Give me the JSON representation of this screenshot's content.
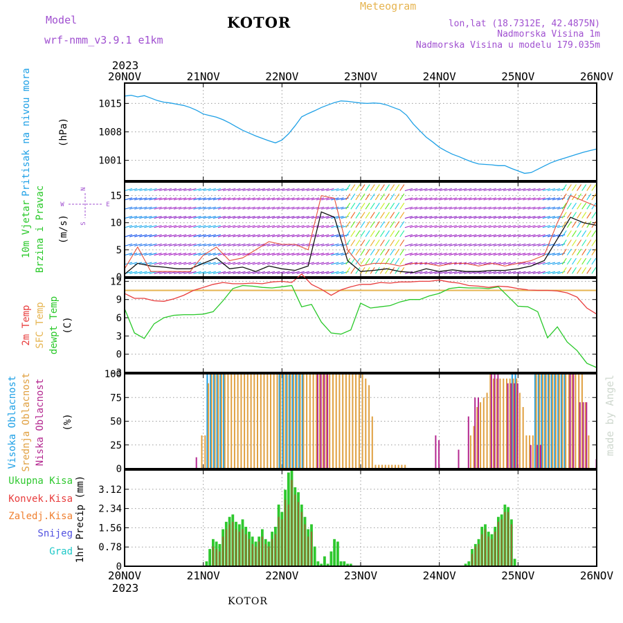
{
  "header": {
    "model_label": "Model",
    "model_name": "wrf-nmm_v3.9.1  e1km",
    "title": "KOTOR",
    "meteogram": "Meteogram",
    "lonlat": "lon,lat (18.7312E, 42.4875N)",
    "elevation": "Nadmorska Visina 1m",
    "model_elevation": "Nadmorska Visina u modelu 179.035m",
    "credit": "made by Angel",
    "footer_title": "KOTOR"
  },
  "colors": {
    "pressure": "#1ea0e6",
    "temp2m": "#e83c3c",
    "sfc_temp": "#e6b450",
    "dewpoint": "#28c828",
    "wind_speed": "#111111",
    "wind_gust": "#e6503c",
    "high_cloud": "#1ea0e6",
    "mid_cloud": "#e0a040",
    "low_cloud": "#b42890",
    "total_precip": "#2ec82e",
    "conv_precip": "#e83c3c",
    "frozen_precip": "#f08030",
    "snow": "#5050e0",
    "hail": "#20c8c8",
    "header_purple": "#a050d0",
    "header_gold": "#e6b450"
  },
  "chart_data": [
    {
      "type": "line",
      "panel": "pressure",
      "ylabel": [
        "Pritisak na nivou mora",
        "(hPa)"
      ],
      "x_ticks": [
        "20NOV",
        "21NOV",
        "22NOV",
        "23NOV",
        "24NOV",
        "25NOV",
        "26NOV"
      ],
      "x_year": "2023",
      "ylim": [
        996,
        1020
      ],
      "y_ticks": [
        1001,
        1008,
        1015
      ],
      "grid": true,
      "series": [
        {
          "x": [
            0,
            2,
            4,
            6,
            8,
            10,
            12,
            14,
            16,
            18,
            20,
            22,
            24,
            26,
            28,
            30,
            32,
            34,
            36,
            38,
            40,
            42,
            44,
            46,
            48,
            50,
            52,
            54,
            56,
            58,
            60,
            62,
            64,
            66,
            68,
            70,
            72,
            74,
            76,
            78,
            80,
            82,
            84,
            86,
            88,
            90,
            92,
            94,
            96,
            98,
            100,
            102,
            104,
            106,
            108,
            110,
            112,
            114,
            116,
            118,
            120,
            122,
            124,
            126,
            128,
            130,
            132,
            134,
            136,
            138,
            140,
            142,
            144
          ],
          "values": [
            1016.8,
            1017.0,
            1016.6,
            1016.9,
            1016.3,
            1015.7,
            1015.3,
            1015.1,
            1014.8,
            1014.5,
            1014.0,
            1013.3,
            1012.4,
            1012.0,
            1011.6,
            1011.0,
            1010.2,
            1009.3,
            1008.4,
            1007.7,
            1007.0,
            1006.4,
            1005.8,
            1005.3,
            1006.0,
            1007.5,
            1009.5,
            1011.7,
            1012.5,
            1013.2,
            1014.0,
            1014.6,
            1015.2,
            1015.6,
            1015.5,
            1015.3,
            1015.1,
            1015.0,
            1015.1,
            1015.0,
            1014.6,
            1014.0,
            1013.4,
            1012.1,
            1010.0,
            1008.3,
            1006.7,
            1005.5,
            1004.2,
            1003.3,
            1002.5,
            1001.9,
            1001.2,
            1000.6,
            1000.1,
            1000.0,
            999.9,
            999.7,
            999.7,
            999.0,
            998.4,
            997.8,
            998.0,
            998.8,
            999.6,
            1000.4,
            1001.0,
            1001.5,
            1002.0,
            1002.5,
            1003.0,
            1003.4,
            1003.8
          ]
        }
      ]
    },
    {
      "type": "line",
      "panel": "wind",
      "ylabel": [
        "10m Vjetar",
        "Brzina i Pravac",
        "(m/s)"
      ],
      "compass": [
        "N",
        "W",
        "E",
        "S"
      ],
      "ylim": [
        0,
        17.5
      ],
      "y_ticks": [
        0,
        5,
        10,
        15
      ],
      "grid": true,
      "series": [
        {
          "key": "speed",
          "x": [
            0,
            4,
            8,
            12,
            16,
            20,
            24,
            28,
            32,
            36,
            40,
            44,
            48,
            52,
            56,
            60,
            64,
            68,
            72,
            76,
            80,
            84,
            88,
            92,
            96,
            100,
            104,
            108,
            112,
            116,
            120,
            124,
            128,
            132,
            136,
            140,
            144
          ],
          "values": [
            0.5,
            2.5,
            2.0,
            1.8,
            1.5,
            1.5,
            2.5,
            3.5,
            1.5,
            1.8,
            1.0,
            2.0,
            1.5,
            1.2,
            2.0,
            12.0,
            11.0,
            3.0,
            1.0,
            1.2,
            1.5,
            1.0,
            0.8,
            1.5,
            1.0,
            1.3,
            1.0,
            1.0,
            1.2,
            1.2,
            1.5,
            2.0,
            3.0,
            7.0,
            11.0,
            10.0,
            9.5
          ]
        },
        {
          "key": "gust",
          "x": [
            0,
            4,
            8,
            12,
            16,
            20,
            24,
            28,
            32,
            36,
            40,
            44,
            48,
            52,
            56,
            60,
            64,
            68,
            72,
            76,
            80,
            84,
            88,
            92,
            96,
            100,
            104,
            108,
            112,
            116,
            120,
            124,
            128,
            132,
            136,
            140,
            144
          ],
          "values": [
            1.5,
            5.5,
            1.0,
            1.0,
            1.0,
            1.0,
            4.0,
            5.5,
            3.0,
            3.5,
            5.0,
            6.5,
            6.0,
            6.0,
            5.0,
            15.0,
            14.5,
            5.0,
            2.0,
            2.5,
            2.5,
            2.0,
            2.5,
            2.5,
            2.0,
            2.5,
            2.5,
            2.0,
            2.5,
            2.0,
            2.5,
            3.0,
            4.0,
            10.0,
            15.0,
            14.0,
            13.0
          ]
        }
      ]
    },
    {
      "type": "line",
      "panel": "temperature",
      "ylabel": [
        "2m Temp",
        "SFC Temp",
        "dewpt Temp",
        "(C)"
      ],
      "ylim": [
        -3,
        12.5
      ],
      "y_ticks": [
        -3,
        0,
        3,
        6,
        9,
        12
      ],
      "grid": true,
      "series": [
        {
          "key": "temp2m",
          "x": [
            0,
            3,
            6,
            9,
            12,
            15,
            18,
            21,
            24,
            27,
            30,
            33,
            36,
            39,
            42,
            45,
            48,
            51,
            54,
            57,
            60,
            63,
            66,
            69,
            72,
            75,
            78,
            81,
            84,
            87,
            90,
            93,
            96,
            99,
            102,
            105,
            108,
            111,
            114,
            117,
            120,
            123,
            126,
            129,
            132,
            135,
            138,
            141,
            144
          ],
          "values": [
            10.0,
            9.2,
            9.2,
            8.8,
            8.7,
            9.1,
            9.7,
            10.5,
            11.0,
            11.5,
            11.8,
            11.6,
            11.6,
            11.7,
            11.6,
            11.9,
            12.0,
            11.8,
            13.2,
            11.5,
            10.7,
            9.7,
            10.6,
            11.1,
            11.5,
            11.5,
            11.8,
            11.7,
            11.9,
            11.9,
            12.0,
            12.0,
            12.2,
            11.9,
            11.7,
            11.3,
            11.2,
            11.0,
            11.2,
            11.1,
            10.8,
            10.6,
            10.5,
            10.5,
            10.4,
            10.1,
            9.4,
            7.6,
            6.6
          ]
        },
        {
          "key": "sfc_temp",
          "x": [
            0,
            144
          ],
          "values": [
            10.5,
            10.5
          ]
        },
        {
          "key": "dewpoint",
          "x": [
            0,
            3,
            6,
            9,
            12,
            15,
            18,
            21,
            24,
            27,
            30,
            33,
            36,
            39,
            42,
            45,
            48,
            51,
            54,
            57,
            60,
            63,
            66,
            69,
            72,
            75,
            78,
            81,
            84,
            87,
            90,
            93,
            96,
            99,
            102,
            105,
            108,
            111,
            114,
            117,
            120,
            123,
            126,
            129,
            132,
            135,
            138,
            141,
            144
          ],
          "values": [
            7.5,
            3.5,
            2.6,
            5.0,
            6.0,
            6.4,
            6.5,
            6.5,
            6.6,
            7.0,
            8.8,
            10.8,
            11.3,
            11.2,
            11.0,
            10.9,
            11.1,
            11.3,
            7.8,
            8.2,
            5.3,
            3.5,
            3.3,
            4.0,
            8.4,
            7.6,
            7.8,
            8.0,
            8.6,
            9.0,
            9.0,
            9.6,
            10.0,
            10.8,
            11.0,
            10.9,
            10.9,
            10.8,
            11.1,
            9.5,
            7.9,
            7.8,
            7.0,
            2.7,
            4.5,
            2.0,
            0.6,
            -1.5,
            -2.2
          ]
        }
      ]
    },
    {
      "type": "bar",
      "panel": "cloud",
      "ylabel": [
        "Visoka Oblacnost",
        "Srednja Oblacnost",
        "Niska Oblacnost",
        "(%)"
      ],
      "ylim": [
        0,
        100
      ],
      "y_ticks": [
        0,
        25,
        50,
        75,
        100
      ],
      "grid": true,
      "series": [
        {
          "key": "high",
          "blocks": [
            [
              25,
              31,
              100
            ],
            [
              47,
              55,
              100
            ],
            [
              118,
              120,
              100
            ],
            [
              125,
              135,
              100
            ]
          ]
        },
        {
          "key": "mid",
          "blocks": [
            [
              23,
              24,
              35
            ],
            [
              24,
              25,
              35
            ],
            [
              25,
              26,
              90
            ],
            [
              26,
              73,
              100
            ],
            [
              73,
              74,
              95
            ],
            [
              74,
              75,
              88
            ],
            [
              75,
              76,
              55
            ],
            [
              76,
              86,
              4
            ],
            [
              105,
              106,
              35
            ],
            [
              106,
              107,
              45
            ],
            [
              107,
              108,
              65
            ],
            [
              108,
              109,
              70
            ],
            [
              109,
              110,
              75
            ],
            [
              110,
              111,
              80
            ],
            [
              111,
              112,
              100
            ],
            [
              112,
              120,
              95
            ],
            [
              120,
              121,
              80
            ],
            [
              121,
              122,
              65
            ],
            [
              122,
              125,
              35
            ],
            [
              125,
              140,
              100
            ],
            [
              140,
              141,
              70
            ],
            [
              141,
              142,
              35
            ]
          ]
        },
        {
          "key": "low",
          "blocks": [
            [
              21,
              22,
              12
            ],
            [
              58,
              62,
              100
            ],
            [
              94,
              95,
              35
            ],
            [
              95,
              96,
              30
            ],
            [
              101,
              102,
              20
            ],
            [
              104,
              105,
              55
            ],
            [
              106,
              108,
              75
            ],
            [
              111,
              114,
              100
            ],
            [
              116,
              120,
              90
            ],
            [
              123,
              124,
              25
            ],
            [
              125,
              127,
              25
            ],
            [
              135,
              137,
              100
            ],
            [
              138,
              141,
              70
            ],
            [
              143,
              144,
              10
            ]
          ]
        }
      ]
    },
    {
      "type": "bar",
      "panel": "precip",
      "ylabel": [
        "1hr Precip (mm)"
      ],
      "legend": [
        "Ukupna Kisa",
        "Konvek.Kisa",
        "Zaledj.Kisa",
        "Snijeg",
        "Grad"
      ],
      "ylim": [
        0,
        3.9
      ],
      "y_ticks": [
        0,
        0.78,
        1.56,
        2.34,
        3.12
      ],
      "y_tick_labels": [
        "0",
        "0.78",
        "1.56",
        "2.34",
        "3.12"
      ],
      "grid": true,
      "total": {
        "x": [
          25,
          26,
          27,
          28,
          29,
          30,
          31,
          32,
          33,
          34,
          35,
          36,
          37,
          38,
          39,
          40,
          41,
          42,
          43,
          44,
          45,
          46,
          47,
          48,
          49,
          50,
          51,
          52,
          53,
          54,
          55,
          56,
          57,
          58,
          59,
          60,
          61,
          62,
          63,
          64,
          65,
          66,
          67,
          68,
          69,
          104,
          105,
          106,
          107,
          108,
          109,
          110,
          111,
          112,
          113,
          114,
          115,
          116,
          117,
          118,
          119
        ],
        "values": [
          0.2,
          0.7,
          1.1,
          1.0,
          0.9,
          1.5,
          1.8,
          2.0,
          2.1,
          1.8,
          1.7,
          1.9,
          1.6,
          1.4,
          1.2,
          1.0,
          1.2,
          1.5,
          1.1,
          1.0,
          1.4,
          1.6,
          2.5,
          2.2,
          3.1,
          3.8,
          3.9,
          3.2,
          3.0,
          2.5,
          2.0,
          1.5,
          1.7,
          0.8,
          0.2,
          0.1,
          0.4,
          0.1,
          0.6,
          1.1,
          1.0,
          0.2,
          0.2,
          0.1,
          0.1,
          0.1,
          0.2,
          0.7,
          0.9,
          1.1,
          1.6,
          1.7,
          1.4,
          1.3,
          1.6,
          2.0,
          2.1,
          2.5,
          2.4,
          1.9,
          0.3
        ]
      },
      "convective": {
        "x": [
          27,
          28,
          29,
          30,
          31,
          32,
          33,
          34,
          35,
          36,
          37,
          38,
          39,
          40,
          41,
          42,
          43,
          44,
          45,
          46,
          47,
          48,
          49,
          50,
          51,
          52,
          53,
          54,
          55,
          56,
          57,
          106,
          107,
          108,
          109,
          110,
          111,
          112,
          113,
          114,
          115,
          116,
          117,
          118
        ],
        "values": [
          0.8,
          0.7,
          0.6,
          1.2,
          1.5,
          1.7,
          1.8,
          1.5,
          1.4,
          1.5,
          1.3,
          1.1,
          0.9,
          0.8,
          1.0,
          1.2,
          0.9,
          0.8,
          1.1,
          1.3,
          2.0,
          1.9,
          2.7,
          2.5,
          3.5,
          2.9,
          2.6,
          2.2,
          1.7,
          1.2,
          1.4,
          0.5,
          0.8,
          0.9,
          1.3,
          1.5,
          1.2,
          1.1,
          1.4,
          1.8,
          1.9,
          2.2,
          2.2,
          1.7
        ]
      }
    }
  ]
}
